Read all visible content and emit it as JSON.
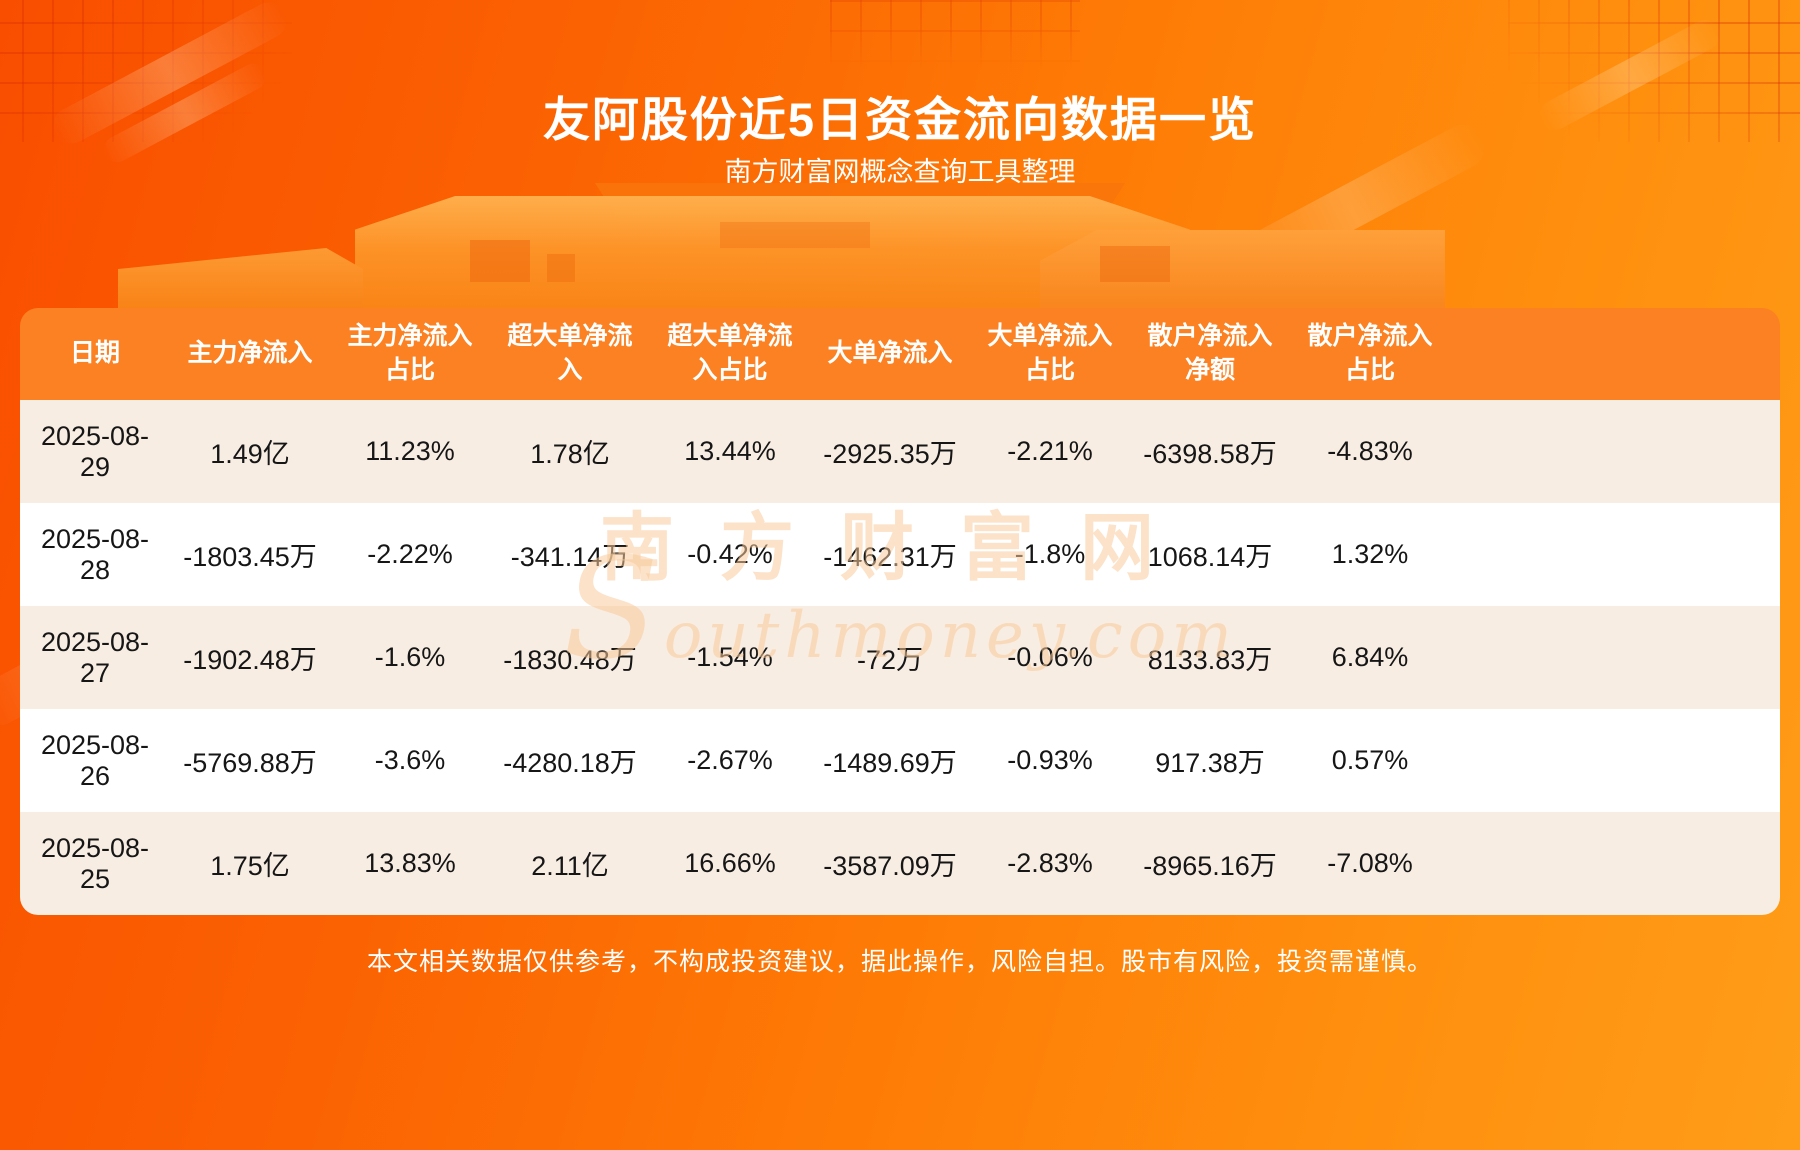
{
  "page": {
    "title": "友阿股份近5日资金流向数据一览",
    "subtitle": "南方财富网概念查询工具整理",
    "disclaimer": "本文相关数据仅供参考，不构成投资建议，据此操作，风险自担。股市有风险，投资需谨慎。"
  },
  "watermark": {
    "cn": "南方财富网",
    "en": "Southmoney.com"
  },
  "colors": {
    "header_bg": "#fb8122",
    "row_bg": "#ffffff",
    "row_alt_bg": "#f8ede3",
    "background_orange_start": "#f94e00",
    "background_orange_end": "#ff9d18",
    "title_color": "#ffffff",
    "body_text_color": "#161616"
  },
  "chart_data": {
    "type": "table",
    "title": "友阿股份近5日资金流向数据一览",
    "columns": [
      "日期",
      "主力净流入",
      "主力净流入占比",
      "超大单净流入",
      "超大单净流入占比",
      "大单净流入",
      "大单净流入占比",
      "散户净流入净额",
      "散户净流入占比"
    ],
    "rows": [
      [
        "2025-08-29",
        "1.49亿",
        "11.23%",
        "1.78亿",
        "13.44%",
        "-2925.35万",
        "-2.21%",
        "-6398.58万",
        "-4.83%"
      ],
      [
        "2025-08-28",
        "-1803.45万",
        "-2.22%",
        "-341.14万",
        "-0.42%",
        "-1462.31万",
        "-1.8%",
        "1068.14万",
        "1.32%"
      ],
      [
        "2025-08-27",
        "-1902.48万",
        "-1.6%",
        "-1830.48万",
        "-1.54%",
        "-72万",
        "-0.06%",
        "8133.83万",
        "6.84%"
      ],
      [
        "2025-08-26",
        "-5769.88万",
        "-3.6%",
        "-4280.18万",
        "-2.67%",
        "-1489.69万",
        "-0.93%",
        "917.38万",
        "0.57%"
      ],
      [
        "2025-08-25",
        "1.75亿",
        "13.83%",
        "2.11亿",
        "16.66%",
        "-3587.09万",
        "-2.83%",
        "-8965.16万",
        "-7.08%"
      ]
    ]
  }
}
